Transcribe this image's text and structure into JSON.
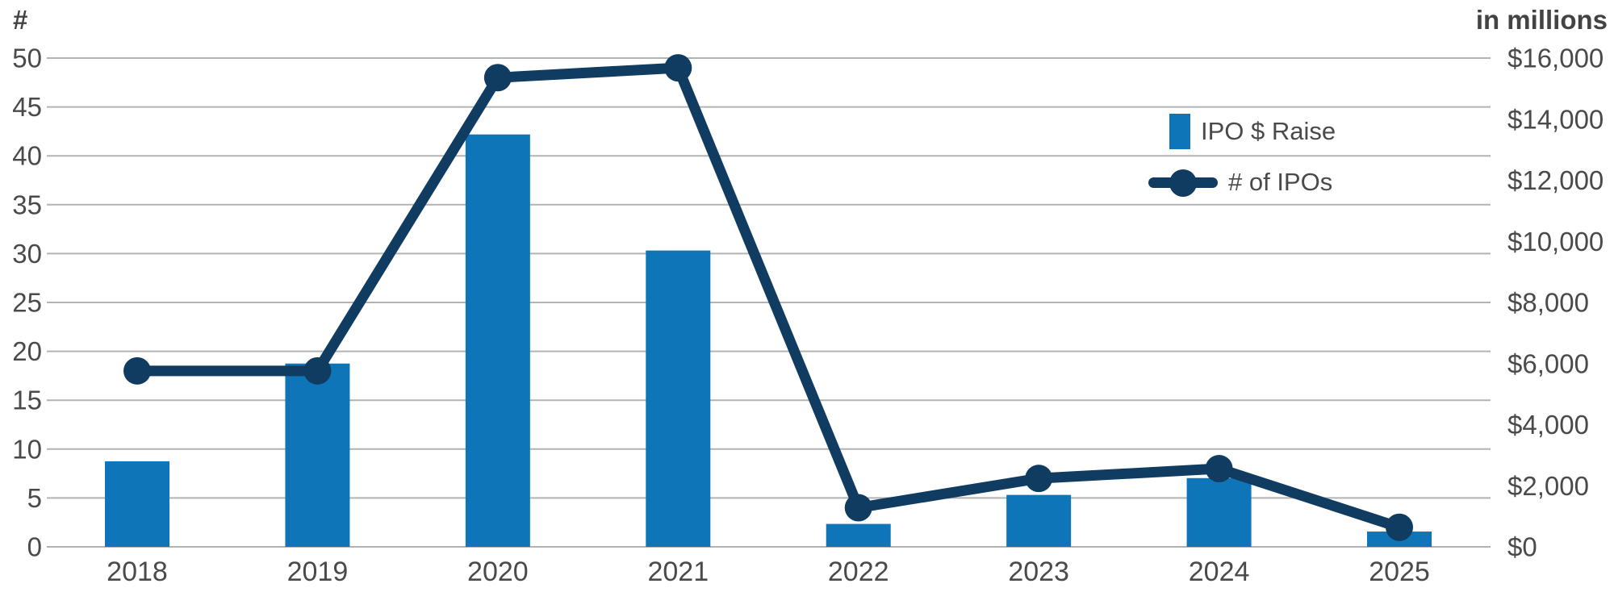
{
  "chart_data": {
    "type": "combo",
    "categories": [
      "2018",
      "2019",
      "2020",
      "2021",
      "2022",
      "2023",
      "2024",
      "2025"
    ],
    "series": [
      {
        "name": "IPO $ Raise",
        "chart_type": "bar",
        "axis": "right",
        "color": "#0e76b8",
        "values": [
          2800,
          6000,
          13500,
          9700,
          750,
          1700,
          2250,
          500
        ]
      },
      {
        "name": "# of IPOs",
        "chart_type": "line",
        "axis": "left",
        "color": "#113c62",
        "values": [
          18,
          18,
          48,
          49,
          4,
          7,
          8,
          2
        ]
      }
    ],
    "left_axis": {
      "title": "#",
      "min": 0,
      "max": 50,
      "step": 5,
      "tick_labels": [
        "0",
        "5",
        "10",
        "15",
        "20",
        "25",
        "30",
        "35",
        "40",
        "45",
        "50"
      ]
    },
    "right_axis": {
      "title": "in millions",
      "min": 0,
      "max": 16000,
      "step": 2000,
      "tick_labels": [
        "$0",
        "$2,000",
        "$4,000",
        "$6,000",
        "$8,000",
        "$10,000",
        "$12,000",
        "$14,000",
        "$16,000"
      ]
    },
    "grid": "horizontal",
    "legend_position": "top-right",
    "styles": {
      "grid_color": "#b3b3b3",
      "tick_text_color": "#4a4a4a",
      "background": "#ffffff"
    }
  }
}
